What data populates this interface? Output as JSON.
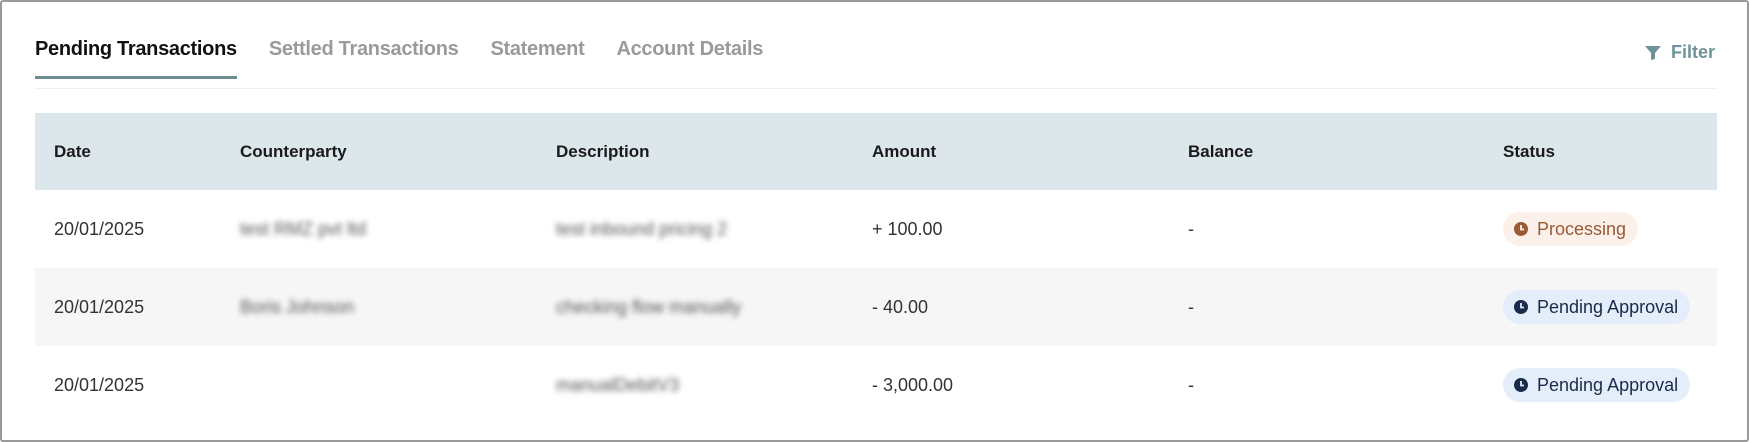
{
  "tabs": [
    {
      "label": "Pending Transactions",
      "active": true
    },
    {
      "label": "Settled Transactions",
      "active": false
    },
    {
      "label": "Statement",
      "active": false
    },
    {
      "label": "Account Details",
      "active": false
    }
  ],
  "filter": {
    "label": "Filter",
    "icon": "funnel-icon"
  },
  "table": {
    "columns": [
      "Date",
      "Counterparty",
      "Description",
      "Amount",
      "Balance",
      "Status"
    ],
    "rows": [
      {
        "date": "20/01/2025",
        "counterparty": "test RMZ pvt ltd",
        "description": "test inbound pricing 2",
        "amount": "+ 100.00",
        "balance": "-",
        "status": "Processing"
      },
      {
        "date": "20/01/2025",
        "counterparty": "Boris Johnson",
        "description": "checking flow manually",
        "amount": "- 40.00",
        "balance": "-",
        "status": "Pending Approval"
      },
      {
        "date": "20/01/2025",
        "counterparty": "",
        "description": "manualDebitV3",
        "amount": "- 3,000.00",
        "balance": "-",
        "status": "Pending Approval"
      }
    ]
  },
  "colors": {
    "header_bg": "#dbe7eb",
    "tab_underline": "#6e8c94",
    "processing_bg": "#fbf1ea",
    "processing_fg": "#9a5a33",
    "pending_bg": "#e3eefa",
    "pending_fg": "#1b2a48"
  }
}
